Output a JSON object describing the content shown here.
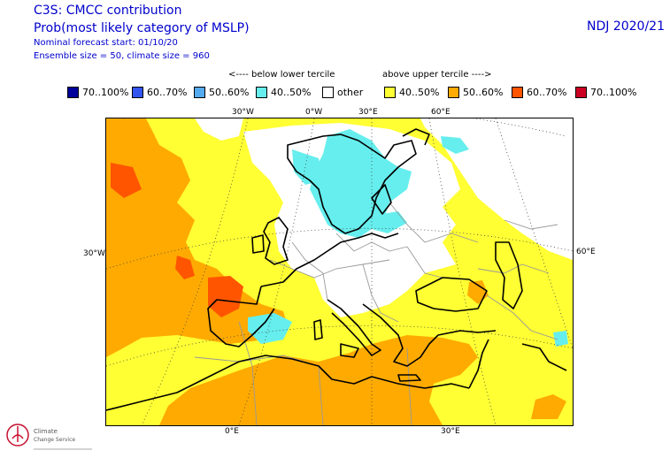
{
  "header": {
    "title": "C3S: CMCC contribution",
    "subtitle": "Prob(most likely category of MSLP)",
    "forecast_start": "Nominal forecast start: 01/10/20",
    "ensemble": "Ensemble size = 50, climate size = 960",
    "season": "NDJ 2020/21"
  },
  "legend": {
    "below_label": "<---- below lower tercile",
    "above_label": "above upper tercile ---->",
    "items": [
      {
        "label": "70..100%",
        "color": "#00009a"
      },
      {
        "label": "60..70%",
        "color": "#3355ee"
      },
      {
        "label": "50..60%",
        "color": "#55aaee"
      },
      {
        "label": "40..50%",
        "color": "#66eeee"
      },
      {
        "label": "other",
        "color": "#ffffff"
      },
      {
        "label": "40..50%",
        "color": "#ffff33"
      },
      {
        "label": "50..60%",
        "color": "#ffaa00"
      },
      {
        "label": "60..70%",
        "color": "#ff5500"
      },
      {
        "label": "70..100%",
        "color": "#cc0022"
      }
    ]
  },
  "map": {
    "ticks": {
      "top": [
        "30°W",
        "0°W",
        "30°E",
        "60°E"
      ],
      "left": [
        "30°W"
      ],
      "right": [
        "60°E"
      ],
      "bottom": [
        "0°E",
        "30°E"
      ]
    }
  },
  "logo": {
    "line1": "Climate",
    "line2": "Change Service"
  }
}
